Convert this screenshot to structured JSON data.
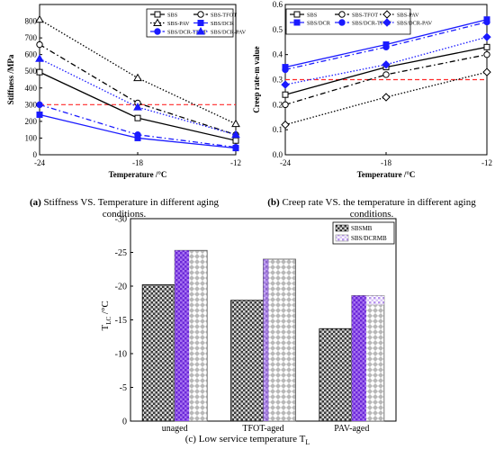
{
  "captions": {
    "a_letter": "(a)",
    "a_text": "Stiffness VS. Temperature in different aging",
    "a_text2": "conditions.",
    "b_letter": "(b)",
    "b_text": "Creep rate VS. the temperature in different aging",
    "b_text2": "conditions.",
    "c_text": "(c) Low service temperature T",
    "c_sub": "L"
  },
  "chart_data": [
    {
      "type": "line",
      "id": "a",
      "xlabel": "Temperature /°C",
      "ylabel": "Stiffness /MPa",
      "x": [
        -24,
        -18,
        -12
      ],
      "x_ticks": [
        "-24",
        "-18",
        "-12"
      ],
      "ylim": [
        0,
        900
      ],
      "y_ticks": [
        "0",
        "100",
        "200",
        "300",
        "400",
        "500",
        "600",
        "700",
        "800"
      ],
      "reference_line": {
        "y": 300,
        "color": "#ff2a2a"
      },
      "series": [
        {
          "name": "SBS",
          "values": [
            495,
            220,
            85
          ],
          "color": "#000000",
          "dash": "",
          "marker": "square",
          "filled": false
        },
        {
          "name": "SBS-TFOT",
          "values": [
            660,
            310,
            120
          ],
          "color": "#000000",
          "dash": "6,3,1.5,3",
          "marker": "circle",
          "filled": false
        },
        {
          "name": "SBS-PAV",
          "values": [
            810,
            460,
            185
          ],
          "color": "#000000",
          "dash": "1.5,2",
          "marker": "triangle",
          "filled": false
        },
        {
          "name": "SBS/DCR",
          "values": [
            240,
            100,
            40
          ],
          "color": "#1a1aff",
          "dash": "",
          "marker": "square",
          "filled": true
        },
        {
          "name": "SBS/DCR-TFOT",
          "values": [
            300,
            120,
            45
          ],
          "color": "#1a1aff",
          "dash": "6,3,1.5,3",
          "marker": "circle",
          "filled": true
        },
        {
          "name": "SBS/DCR-PAV",
          "values": [
            575,
            285,
            120
          ],
          "color": "#1a1aff",
          "dash": "1.5,2",
          "marker": "triangle",
          "filled": true
        }
      ],
      "legend": {
        "columns": 2,
        "placement": "top-right"
      }
    },
    {
      "type": "line",
      "id": "b",
      "xlabel": "Temperature /°C",
      "ylabel": "Creep rate-m value",
      "x": [
        -24,
        -18,
        -12
      ],
      "x_ticks": [
        "-24",
        "-18",
        "-12"
      ],
      "ylim": [
        0,
        0.6
      ],
      "y_ticks": [
        "0.0",
        "0.1",
        "0.2",
        "0.3",
        "0.4",
        "0.5",
        "0.6"
      ],
      "reference_line": {
        "y": 0.3,
        "color": "#ff2a2a"
      },
      "series": [
        {
          "name": "SBS",
          "values": [
            0.24,
            0.35,
            0.43
          ],
          "color": "#000000",
          "dash": "",
          "marker": "square",
          "filled": false
        },
        {
          "name": "SBS-TFOT",
          "values": [
            0.2,
            0.32,
            0.4
          ],
          "color": "#000000",
          "dash": "6,3,1.5,3",
          "marker": "circle",
          "filled": false
        },
        {
          "name": "SBS-PAV",
          "values": [
            0.12,
            0.23,
            0.33
          ],
          "color": "#000000",
          "dash": "1.5,2",
          "marker": "diamond",
          "filled": false
        },
        {
          "name": "SBS/DCR",
          "values": [
            0.35,
            0.44,
            0.54
          ],
          "color": "#1a1aff",
          "dash": "",
          "marker": "square",
          "filled": true
        },
        {
          "name": "SBS/DCR-TFOT",
          "values": [
            0.34,
            0.43,
            0.53
          ],
          "color": "#1a1aff",
          "dash": "6,3,1.5,3",
          "marker": "circle",
          "filled": true
        },
        {
          "name": "SBS/DCR-PAV",
          "values": [
            0.28,
            0.36,
            0.47
          ],
          "color": "#1a1aff",
          "dash": "1.5,2",
          "marker": "diamond",
          "filled": true
        }
      ],
      "legend": {
        "columns": 3,
        "placement": "top"
      }
    },
    {
      "type": "bar",
      "id": "c",
      "categories": [
        "unaged",
        "TFOT-aged",
        "PAV-aged"
      ],
      "ylabel_main": "T",
      "ylabel_sub": "LC",
      "ylabel_unit": " /°C",
      "ylim": [
        0,
        -30
      ],
      "y_ticks": [
        "-30",
        "-25",
        "-20",
        "-15",
        "-10",
        "-5",
        "0"
      ],
      "series": [
        {
          "name": "SBSMB",
          "values": [
            -20.2,
            -17.9,
            -13.7
          ],
          "pattern": "checker-dark"
        },
        {
          "name": "SBS/DCRMB",
          "values": [
            -25.3,
            -24.0,
            -18.6
          ],
          "pattern": "purple-gradient"
        }
      ],
      "legend": {
        "placement": "top-right"
      }
    }
  ]
}
